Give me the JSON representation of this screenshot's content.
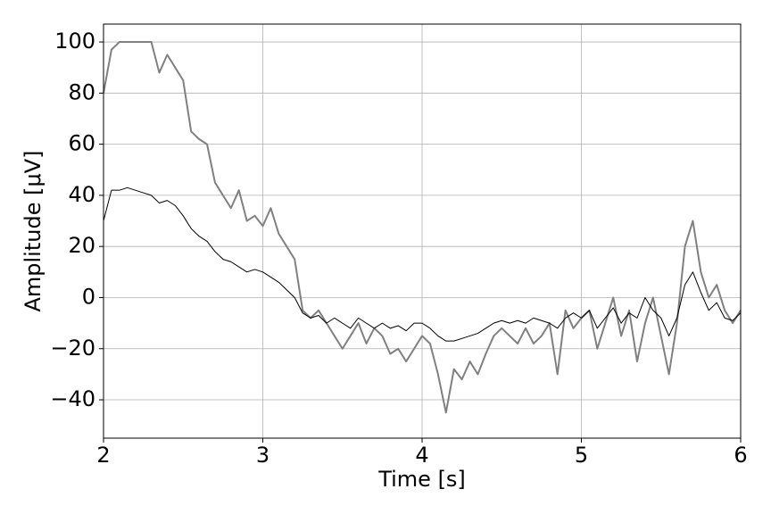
{
  "chart_data": {
    "type": "line",
    "xlabel": "Time [s]",
    "ylabel": "Amplitude [μV]",
    "x": [
      2.0,
      2.05,
      2.1,
      2.15,
      2.2,
      2.25,
      2.3,
      2.35,
      2.4,
      2.45,
      2.5,
      2.55,
      2.6,
      2.65,
      2.7,
      2.75,
      2.8,
      2.85,
      2.9,
      2.95,
      3.0,
      3.05,
      3.1,
      3.15,
      3.2,
      3.25,
      3.3,
      3.35,
      3.4,
      3.45,
      3.5,
      3.55,
      3.6,
      3.65,
      3.7,
      3.75,
      3.8,
      3.85,
      3.9,
      3.95,
      4.0,
      4.05,
      4.1,
      4.15,
      4.2,
      4.25,
      4.3,
      4.35,
      4.4,
      4.45,
      4.5,
      4.55,
      4.6,
      4.65,
      4.7,
      4.75,
      4.8,
      4.85,
      4.9,
      4.95,
      5.0,
      5.05,
      5.1,
      5.15,
      5.2,
      5.25,
      5.3,
      5.35,
      5.4,
      5.45,
      5.5,
      5.55,
      5.6,
      5.65,
      5.7,
      5.75,
      5.8,
      5.85,
      5.9,
      5.95,
      6.0
    ],
    "series": [
      {
        "color": "#808080",
        "width": 2,
        "values": [
          80,
          97,
          100,
          100,
          100,
          100,
          100,
          88,
          95,
          90,
          85,
          65,
          62,
          60,
          45,
          40,
          35,
          42,
          30,
          32,
          28,
          35,
          25,
          20,
          15,
          -5,
          -8,
          -5,
          -10,
          -15,
          -20,
          -15,
          -10,
          -18,
          -12,
          -15,
          -22,
          -20,
          -25,
          -20,
          -15,
          -18,
          -30,
          -45,
          -28,
          -32,
          -25,
          -30,
          -22,
          -15,
          -12,
          -15,
          -18,
          -12,
          -18,
          -15,
          -10,
          -30,
          -5,
          -12,
          -8,
          -5,
          -20,
          -10,
          0,
          -15,
          -5,
          -25,
          -10,
          0,
          -15,
          -30,
          -10,
          20,
          30,
          10,
          0,
          5,
          -5,
          -10,
          -5
        ]
      },
      {
        "color": "#000000",
        "width": 1,
        "values": [
          30,
          42,
          42,
          43,
          42,
          41,
          40,
          37,
          38,
          36,
          32,
          27,
          24,
          22,
          18,
          15,
          14,
          12,
          10,
          11,
          10,
          8,
          6,
          3,
          0,
          -6,
          -8,
          -7,
          -10,
          -8,
          -10,
          -12,
          -8,
          -10,
          -12,
          -10,
          -12,
          -11,
          -13,
          -10,
          -10,
          -12,
          -15,
          -17,
          -17,
          -16,
          -15,
          -14,
          -12,
          -10,
          -9,
          -10,
          -9,
          -10,
          -8,
          -9,
          -10,
          -12,
          -8,
          -6,
          -8,
          -5,
          -12,
          -8,
          -4,
          -10,
          -6,
          -8,
          0,
          -5,
          -8,
          -15,
          -8,
          5,
          10,
          2,
          -5,
          -2,
          -8,
          -9,
          -6
        ]
      }
    ],
    "xlim": [
      2,
      6
    ],
    "ylim": [
      -55,
      107
    ],
    "xticks": [
      2,
      3,
      4,
      5,
      6
    ],
    "yticks": [
      {
        "value": -40,
        "label": "−40"
      },
      {
        "value": -20,
        "label": "−20"
      },
      0,
      20,
      40,
      60,
      80,
      100
    ],
    "grid": true
  }
}
